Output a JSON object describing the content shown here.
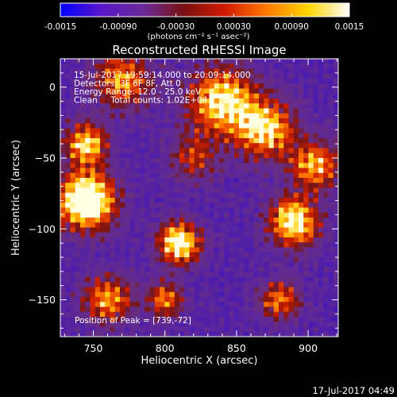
{
  "colorbar": {
    "tick_labels": [
      "-0.0015",
      "-0.00090",
      "-0.00030",
      "0.00030",
      "0.00090",
      "0.0015"
    ],
    "tick_values": [
      -0.0015,
      -0.0009,
      -0.0003,
      0.0003,
      0.0009,
      0.0015
    ],
    "range": [
      -0.0015,
      0.0015
    ],
    "unit_label": "(photons cm⁻² s⁻¹ asec⁻²)",
    "colors": [
      "#0000ff",
      "#5a16c8",
      "#6a2a9a",
      "#7a1010",
      "#d21a00",
      "#ff7a00",
      "#ffd400",
      "#ffffff"
    ]
  },
  "chart_data": {
    "type": "heatmap",
    "title": "Reconstructed RHESSI Image",
    "xlabel": "Heliocentric X (arcsec)",
    "ylabel": "Heliocentric Y (arcsec)",
    "xlim": [
      727,
      921
    ],
    "ylim": [
      -176,
      20
    ],
    "x_ticks": [
      750,
      800,
      850,
      900
    ],
    "y_ticks": [
      0,
      -50,
      -100,
      -150
    ],
    "annotations": [
      "15-Jul-2017 19:59:14.000 to 20:09:14.000",
      "Detectors: 3F 6F 8F, Att 0",
      "Energy Range: 12.0 - 25.0 keV",
      "Clean     Total counts: 1.02E+04"
    ],
    "peak_label": "Position of Peak = [739,-72]",
    "peak_position": [
      739,
      -72
    ]
  },
  "footer": {
    "timestamp": "17-Jul-2017 04:49"
  }
}
